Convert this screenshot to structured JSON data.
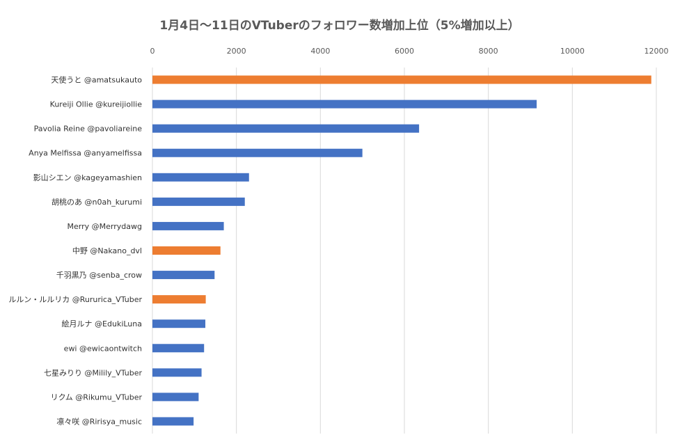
{
  "chart_data": {
    "type": "bar",
    "orientation": "horizontal",
    "title": "1月4日～11日のVTuberのフォロワー数増加上位（5%増加以上）",
    "xlabel": "",
    "ylabel": "",
    "xlim": [
      0,
      12000
    ],
    "x_ticks": [
      "0",
      "2000",
      "4000",
      "6000",
      "8000",
      "10000",
      "12000"
    ],
    "x_axis_position": "top",
    "grid": true,
    "legend": "none",
    "colors": {
      "blue": "#4472C4",
      "orange": "#ED7D31"
    },
    "categories": [
      "天使うと @amatsukauto",
      "Kureiji Ollie @kureijiollie",
      "Pavolia Reine @pavoliareine",
      "Anya Melfissa @anyamelfissa",
      "影山シエン @kageyamashien",
      "胡桃のあ @n0ah_kurumi",
      "Merry @Merrydawg",
      "中野 @Nakano_dvl",
      "千羽黒乃 @senba_crow",
      "ルルン・ルルリカ @Rururica_VTuber",
      "絵月ルナ @EdukiLuna",
      "ewi @ewicaontwitch",
      "七星みりり @Milily_VTuber",
      "リクム @Rikumu_VTuber",
      "凛々咲 @Ririsya_music"
    ],
    "values": [
      11880,
      9150,
      6350,
      5000,
      2300,
      2200,
      1700,
      1620,
      1480,
      1270,
      1260,
      1230,
      1170,
      1100,
      980
    ],
    "bar_colors": [
      "orange",
      "blue",
      "blue",
      "blue",
      "blue",
      "blue",
      "blue",
      "orange",
      "blue",
      "orange",
      "blue",
      "blue",
      "blue",
      "blue",
      "blue"
    ]
  }
}
